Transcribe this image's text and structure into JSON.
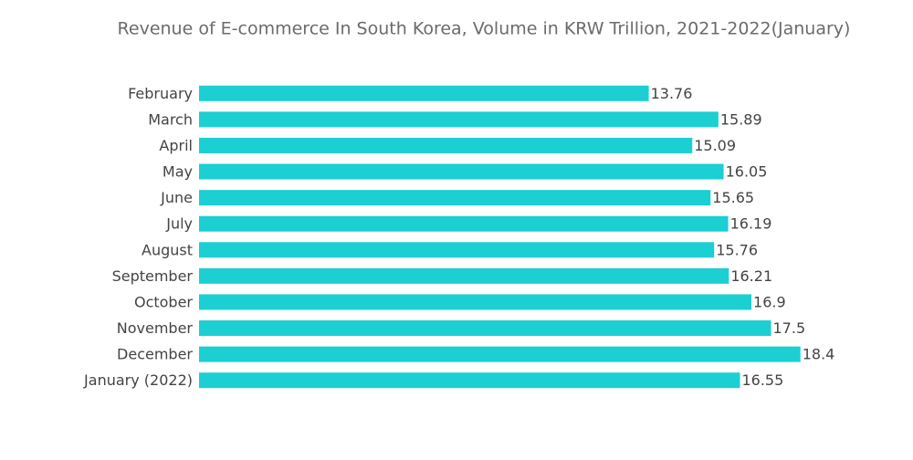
{
  "chart_data": {
    "type": "hbar",
    "title": "Revenue of E-commerce In South Korea, Volume in KRW Trillion, 2021-2022(January)",
    "categories": [
      "February",
      "March",
      "April",
      "May",
      "June",
      "July",
      "August",
      "September",
      "October",
      "November",
      "December",
      "January (2022)"
    ],
    "values": [
      13.76,
      15.89,
      15.09,
      16.05,
      15.65,
      16.19,
      15.76,
      16.21,
      16.9,
      17.5,
      18.4,
      16.55
    ],
    "color": "#1ccfd2",
    "xlim": [
      0,
      20
    ]
  }
}
